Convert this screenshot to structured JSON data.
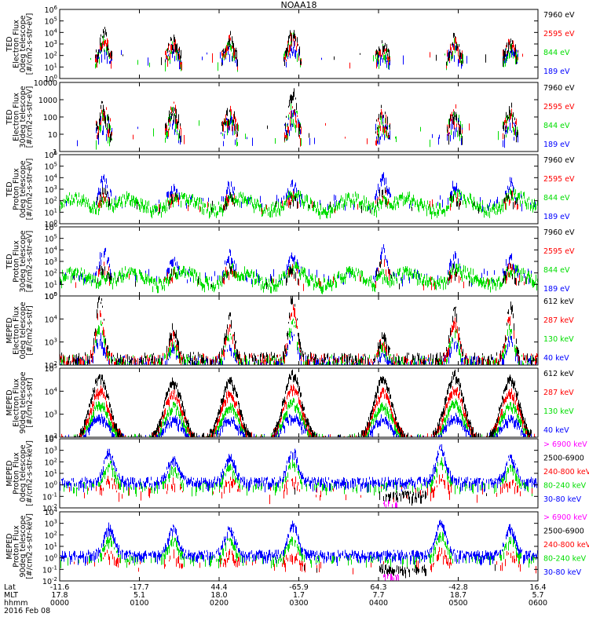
{
  "chart_data": {
    "type": "line",
    "title": "NOAA18",
    "x_axis": {
      "rows": [
        {
          "label": "Lat",
          "values": [
            "-11.6",
            "-17.7",
            "44.4",
            "-65.9",
            "64.3",
            "-42.8",
            "16.4"
          ]
        },
        {
          "label": "MLT",
          "values": [
            "17.8",
            "5.1",
            "18.0",
            "1.7",
            "7.7",
            "18.7",
            "5.7"
          ]
        },
        {
          "label": "hhmm",
          "values": [
            "0000",
            "0100",
            "0200",
            "0300",
            "0400",
            "0500",
            "0600"
          ]
        }
      ],
      "date": "2016 Feb 08",
      "range_hours": [
        0,
        6
      ]
    },
    "panels": [
      {
        "instrument": "TED",
        "ylabel_lines": [
          "TED",
          "Electron Flux",
          "0deg telescope",
          "[#/cm2-s-str-eV]"
        ],
        "yscale": "log",
        "ylim_exp": [
          0,
          6
        ],
        "ticks": [
          {
            "b": "10",
            "e": "0"
          },
          {
            "b": "10",
            "e": "1"
          },
          {
            "b": "10",
            "e": "2"
          },
          {
            "b": "10",
            "e": "3"
          },
          {
            "b": "10",
            "e": "4"
          },
          {
            "b": "10",
            "e": "5"
          },
          {
            "b": "10",
            "e": "6"
          }
        ],
        "series": [
          {
            "name": "7960 eV",
            "color": "#000000"
          },
          {
            "name": "2595 eV",
            "color": "#ff0000"
          },
          {
            "name": "844 eV",
            "color": "#00dd00"
          },
          {
            "name": "189 eV",
            "color": "#0000ff"
          }
        ],
        "style": "sparse",
        "ref_exp": 1.7,
        "bursts": [
          [
            0.55,
            4.0
          ],
          [
            1.42,
            3.4
          ],
          [
            2.13,
            3.6
          ],
          [
            2.92,
            4.4
          ],
          [
            4.05,
            3.0
          ],
          [
            4.95,
            3.6
          ],
          [
            5.65,
            3.3
          ]
        ],
        "seed": 11
      },
      {
        "instrument": "TED",
        "ylabel_lines": [
          "TED",
          "Electron Flux",
          "30deg telescope",
          "[#/cm2-s-str-eV]"
        ],
        "yscale": "log",
        "ylim_exp": [
          0,
          4
        ],
        "ticks": [
          {
            "b": "1",
            "e": ""
          },
          {
            "b": "10",
            "e": ""
          },
          {
            "b": "100",
            "e": ""
          },
          {
            "b": "1000",
            "e": ""
          },
          {
            "b": "10000",
            "e": ""
          }
        ],
        "series": [
          {
            "name": "7960 eV",
            "color": "#000000"
          },
          {
            "name": "2595 eV",
            "color": "#ff0000"
          },
          {
            "name": "844 eV",
            "color": "#00dd00"
          },
          {
            "name": "189 eV",
            "color": "#0000ff"
          }
        ],
        "style": "sparse",
        "ref_exp": 1.0,
        "bursts": [
          [
            0.55,
            2.6
          ],
          [
            1.42,
            2.8
          ],
          [
            2.13,
            2.5
          ],
          [
            2.92,
            3.2
          ],
          [
            4.05,
            2.2
          ],
          [
            4.95,
            2.6
          ],
          [
            5.65,
            2.4
          ]
        ],
        "seed": 23
      },
      {
        "instrument": "TED",
        "ylabel_lines": [
          "TED",
          "Proton Flux",
          "0deg telescope",
          "[#/cm2-s-str-eV]"
        ],
        "yscale": "log",
        "ylim_exp": [
          0,
          6
        ],
        "ticks": [
          {
            "b": "10",
            "e": "0"
          },
          {
            "b": "10",
            "e": "1"
          },
          {
            "b": "10",
            "e": "2"
          },
          {
            "b": "10",
            "e": "3"
          },
          {
            "b": "10",
            "e": "4"
          },
          {
            "b": "10",
            "e": "5"
          },
          {
            "b": "10",
            "e": "6"
          }
        ],
        "series": [
          {
            "name": "7960 eV",
            "color": "#000000"
          },
          {
            "name": "2595 eV",
            "color": "#ff0000"
          },
          {
            "name": "844 eV",
            "color": "#00dd00"
          },
          {
            "name": "189 eV",
            "color": "#0000ff"
          }
        ],
        "style": "continuous",
        "ref_exp": 1.5,
        "bursts": [
          [
            0.55,
            3.6
          ],
          [
            1.42,
            2.8
          ],
          [
            2.13,
            3.0
          ],
          [
            2.92,
            3.0
          ],
          [
            4.05,
            3.8
          ],
          [
            4.95,
            3.0
          ],
          [
            5.65,
            3.2
          ]
        ],
        "seed": 37
      },
      {
        "instrument": "TED",
        "ylabel_lines": [
          "TED",
          "Proton Flux",
          "30deg telescope",
          "[#/cm2-s-str-eV]"
        ],
        "yscale": "log",
        "ylim_exp": [
          0,
          6
        ],
        "ticks": [
          {
            "b": "10",
            "e": "0"
          },
          {
            "b": "10",
            "e": "1"
          },
          {
            "b": "10",
            "e": "2"
          },
          {
            "b": "10",
            "e": "3"
          },
          {
            "b": "10",
            "e": "4"
          },
          {
            "b": "10",
            "e": "5"
          },
          {
            "b": "10",
            "e": "6"
          }
        ],
        "series": [
          {
            "name": "7960 eV",
            "color": "#000000"
          },
          {
            "name": "2595 eV",
            "color": "#ff0000"
          },
          {
            "name": "844 eV",
            "color": "#00dd00"
          },
          {
            "name": "189 eV",
            "color": "#0000ff"
          }
        ],
        "style": "continuous",
        "ref_exp": 1.3,
        "bursts": [
          [
            0.55,
            3.8
          ],
          [
            1.42,
            2.6
          ],
          [
            2.13,
            3.2
          ],
          [
            2.92,
            3.0
          ],
          [
            4.05,
            4.0
          ],
          [
            4.95,
            3.0
          ],
          [
            5.65,
            3.2
          ]
        ],
        "seed": 41
      },
      {
        "instrument": "MEPED",
        "ylabel_lines": [
          "MEPED",
          "Electron Flux",
          "0deg telescope",
          "[#/cm2-s-str]"
        ],
        "yscale": "log",
        "ylim_exp": [
          2,
          5
        ],
        "ticks": [
          {
            "b": "10",
            "e": "2"
          },
          {
            "b": "10",
            "e": "3"
          },
          {
            "b": "10",
            "e": "4"
          },
          {
            "b": "10",
            "e": "5"
          }
        ],
        "series": [
          {
            "name": "612 keV",
            "color": "#000000"
          },
          {
            "name": "287 keV",
            "color": "#ff0000"
          },
          {
            "name": "130 keV",
            "color": "#00dd00"
          },
          {
            "name": "40 keV",
            "color": "#0000ff"
          }
        ],
        "style": "meped_e0",
        "ref_exp": 2.0,
        "bursts": [
          [
            0.5,
            4.6
          ],
          [
            1.42,
            3.3
          ],
          [
            2.13,
            3.8
          ],
          [
            2.92,
            4.8
          ],
          [
            4.05,
            3.0
          ],
          [
            4.95,
            4.2
          ],
          [
            5.65,
            4.4
          ]
        ],
        "seed": 53
      },
      {
        "instrument": "MEPED",
        "ylabel_lines": [
          "MEPED",
          "Electron Flux",
          "90deg telescope",
          "[#/cm2-s-str]"
        ],
        "yscale": "log",
        "ylim_exp": [
          2,
          5
        ],
        "ticks": [
          {
            "b": "10",
            "e": "2"
          },
          {
            "b": "10",
            "e": "3"
          },
          {
            "b": "10",
            "e": "4"
          },
          {
            "b": "10",
            "e": "5"
          }
        ],
        "series": [
          {
            "name": "612 keV",
            "color": "#000000"
          },
          {
            "name": "287 keV",
            "color": "#ff0000"
          },
          {
            "name": "130 keV",
            "color": "#00dd00"
          },
          {
            "name": "40 keV",
            "color": "#0000ff"
          }
        ],
        "style": "meped_e90",
        "ref_exp": 2.0,
        "bursts": [
          [
            0.5,
            4.7
          ],
          [
            1.42,
            4.5
          ],
          [
            2.13,
            4.5
          ],
          [
            2.92,
            4.8
          ],
          [
            4.05,
            4.6
          ],
          [
            4.95,
            4.8
          ],
          [
            5.65,
            4.6
          ]
        ],
        "seed": 67
      },
      {
        "instrument": "MEPED",
        "ylabel_lines": [
          "MEPED",
          "Proton Flux",
          "0deg telescope",
          "[#/cm2-s-str-keV]"
        ],
        "yscale": "log",
        "ylim_exp": [
          -2,
          4
        ],
        "ticks": [
          {
            "b": "10",
            "e": "-2"
          },
          {
            "b": "10",
            "e": "-1"
          },
          {
            "b": "10",
            "e": "0"
          },
          {
            "b": "10",
            "e": "1"
          },
          {
            "b": "10",
            "e": "2"
          },
          {
            "b": "10",
            "e": "3"
          },
          {
            "b": "10",
            "e": "4"
          }
        ],
        "series": [
          {
            "name": "> 6900 keV",
            "color": "#ff00ff"
          },
          {
            "name": "2500-6900",
            "color": "#000000"
          },
          {
            "name": "240-800 keV",
            "color": "#ff0000"
          },
          {
            "name": "80-240 keV",
            "color": "#00dd00"
          },
          {
            "name": "30-80 keV",
            "color": "#0000ff"
          }
        ],
        "style": "meped_p",
        "ref_exp": 0.3,
        "bursts": [
          [
            0.62,
            2.9
          ],
          [
            1.42,
            2.3
          ],
          [
            2.13,
            2.5
          ],
          [
            2.92,
            3.0
          ],
          [
            4.78,
            3.2
          ],
          [
            5.65,
            2.4
          ]
        ],
        "seed": 79
      },
      {
        "instrument": "MEPED",
        "ylabel_lines": [
          "MEPED",
          "Proton Flux",
          "90deg telescope",
          "[#/cm2-s-str-keV]"
        ],
        "yscale": "log",
        "ylim_exp": [
          -2,
          4
        ],
        "ticks": [
          {
            "b": "10",
            "e": "-2"
          },
          {
            "b": "10",
            "e": "-1"
          },
          {
            "b": "10",
            "e": "0"
          },
          {
            "b": "10",
            "e": "1"
          },
          {
            "b": "10",
            "e": "2"
          },
          {
            "b": "10",
            "e": "3"
          },
          {
            "b": "10",
            "e": "4"
          }
        ],
        "series": [
          {
            "name": "> 6900 keV",
            "color": "#ff00ff"
          },
          {
            "name": "2500-6900",
            "color": "#000000"
          },
          {
            "name": "240-800 keV",
            "color": "#ff0000"
          },
          {
            "name": "80-240 keV",
            "color": "#00dd00"
          },
          {
            "name": "30-80 keV",
            "color": "#0000ff"
          }
        ],
        "style": "meped_p",
        "ref_exp": 0.3,
        "bursts": [
          [
            0.62,
            2.7
          ],
          [
            1.42,
            2.5
          ],
          [
            2.13,
            2.6
          ],
          [
            2.92,
            2.9
          ],
          [
            4.78,
            3.1
          ],
          [
            5.65,
            2.6
          ]
        ],
        "seed": 97
      }
    ]
  }
}
